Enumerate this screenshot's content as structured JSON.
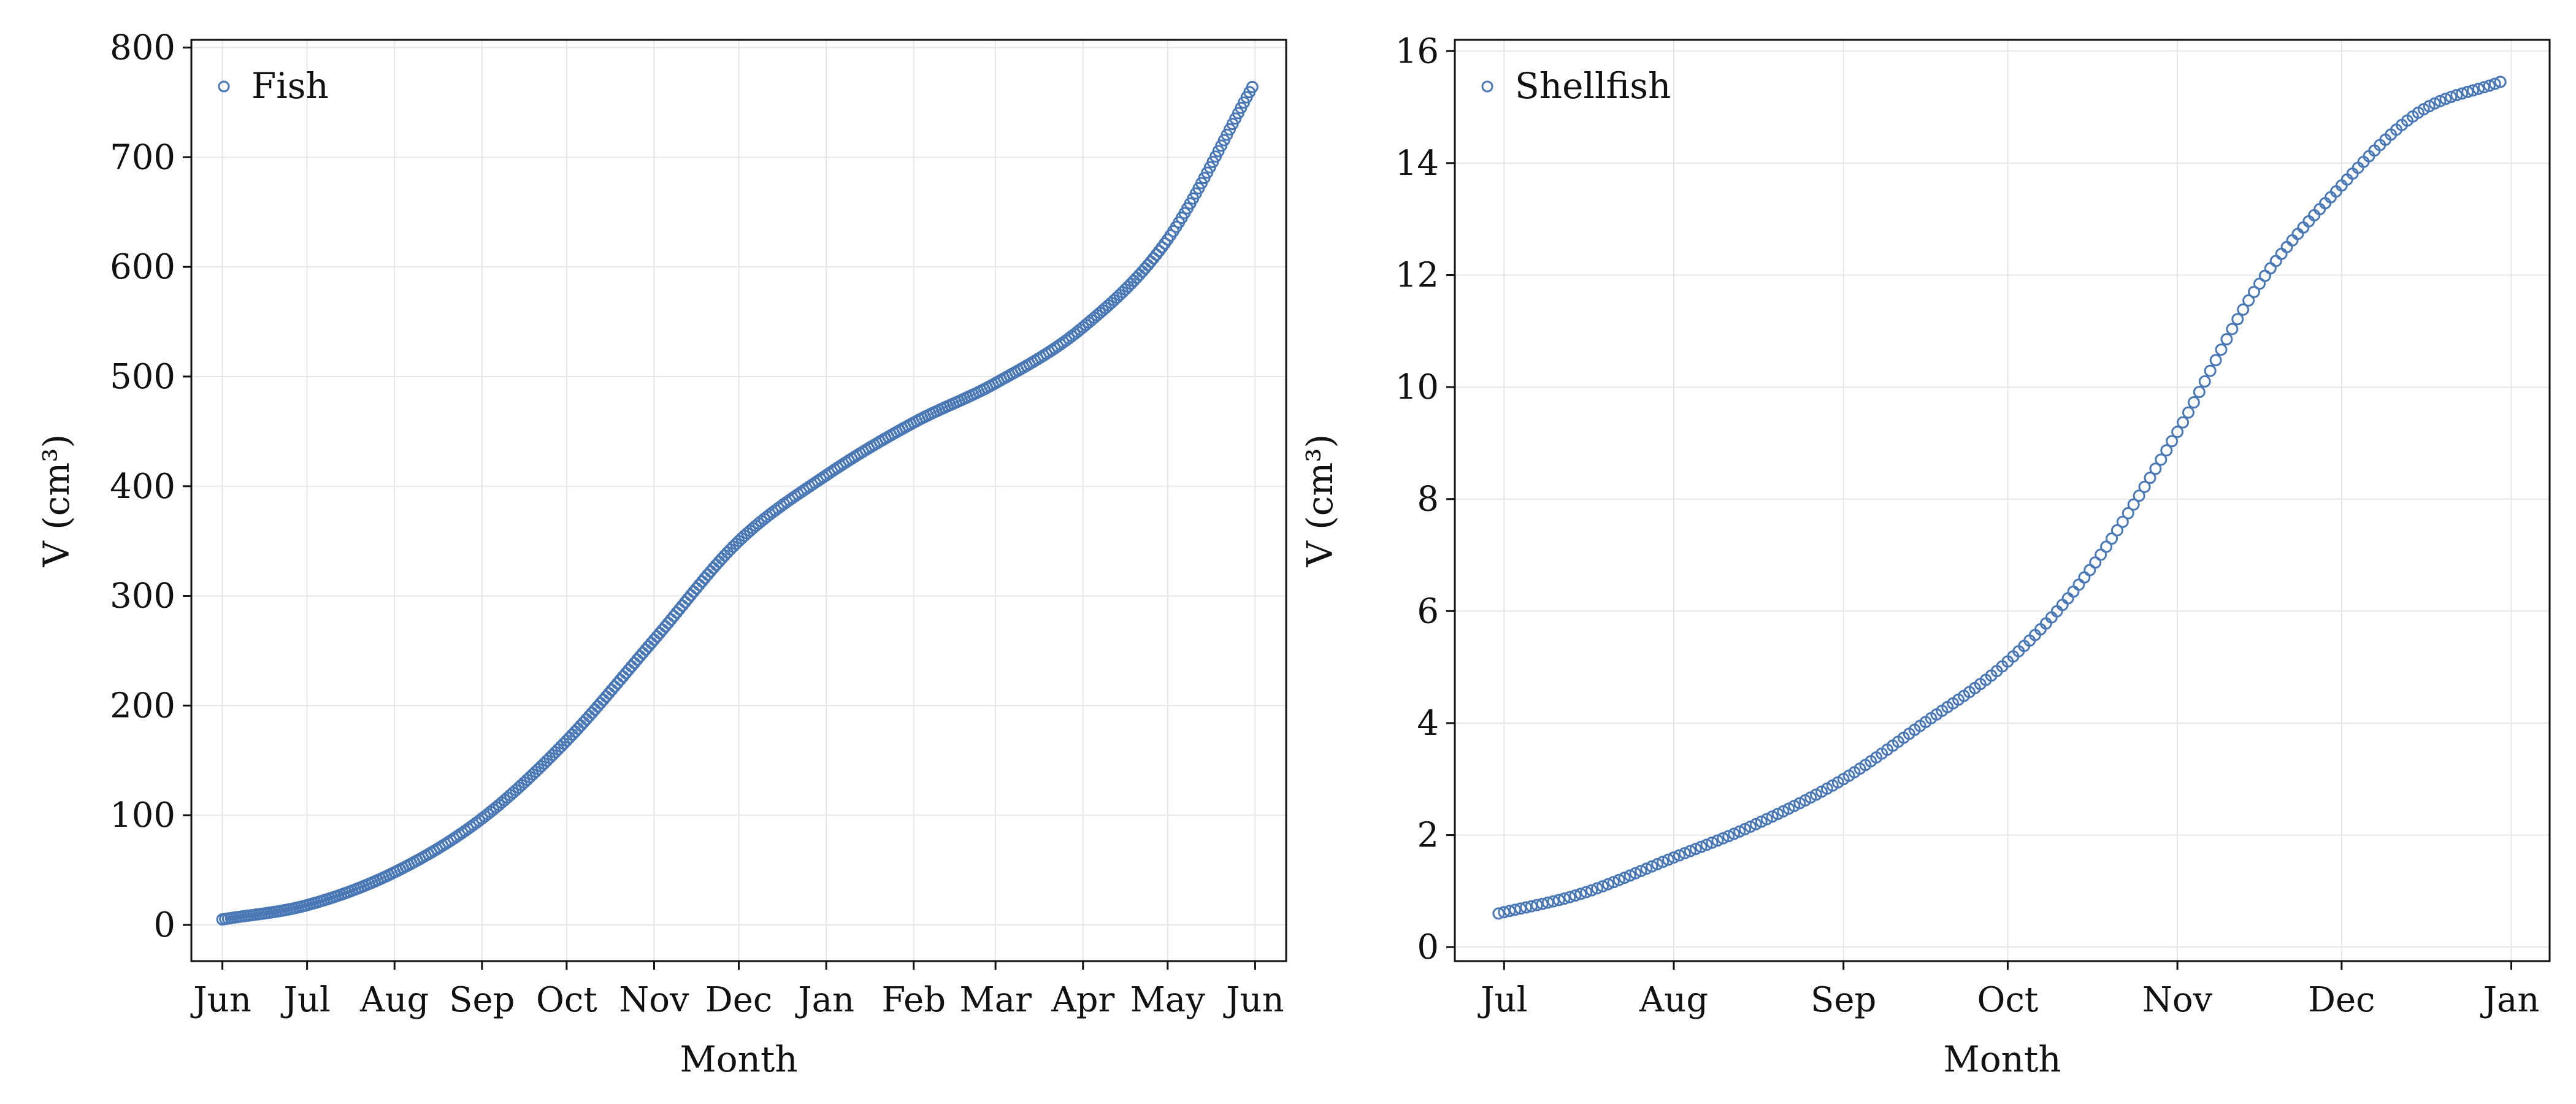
{
  "chart_data": [
    {
      "type": "scatter",
      "legend": {
        "label": "Fish",
        "placement": "top-left"
      },
      "xlabel": "Month",
      "ylabel": "V (cm³)",
      "x_ticks": [
        "Jun",
        "Jul",
        "Aug",
        "Sep",
        "Oct",
        "Nov",
        "Dec",
        "Jan",
        "Feb",
        "Mar",
        "Apr",
        "May",
        "Jun"
      ],
      "x_tick_dates": [
        "2023-06-01",
        "2023-07-01",
        "2023-08-01",
        "2023-09-01",
        "2023-10-01",
        "2023-11-01",
        "2023-12-01",
        "2024-01-01",
        "2024-02-01",
        "2024-03-01",
        "2024-04-01",
        "2024-05-01",
        "2024-06-01"
      ],
      "xlim": [
        "2023-05-21",
        "2024-06-12"
      ],
      "y_ticks": [
        0,
        100,
        200,
        300,
        400,
        500,
        600,
        700,
        800
      ],
      "ylim": [
        -33,
        807
      ],
      "grid": true,
      "marker": {
        "style": "open-circle",
        "color": "#4a78b5"
      },
      "points_every_days": 1,
      "series": [
        {
          "x_start": "2023-06-01",
          "x_end": "2024-05-31",
          "interpolation": "monotone",
          "anchors": [
            {
              "date": "2023-06-01",
              "y": 5
            },
            {
              "date": "2023-07-01",
              "y": 18
            },
            {
              "date": "2023-08-01",
              "y": 48
            },
            {
              "date": "2023-09-01",
              "y": 97
            },
            {
              "date": "2023-10-01",
              "y": 168
            },
            {
              "date": "2023-11-01",
              "y": 260
            },
            {
              "date": "2023-12-01",
              "y": 350
            },
            {
              "date": "2024-01-01",
              "y": 410
            },
            {
              "date": "2024-02-01",
              "y": 458
            },
            {
              "date": "2024-03-01",
              "y": 494
            },
            {
              "date": "2024-04-01",
              "y": 545
            },
            {
              "date": "2024-05-01",
              "y": 625
            },
            {
              "date": "2024-05-31",
              "y": 764
            }
          ]
        }
      ]
    },
    {
      "type": "scatter",
      "legend": {
        "label": "Shellfish",
        "placement": "top-left"
      },
      "xlabel": "Month",
      "ylabel": "V (cm³)",
      "x_ticks": [
        "Jul",
        "Aug",
        "Sep",
        "Oct",
        "Nov",
        "Dec",
        "Jan"
      ],
      "x_tick_dates": [
        "2023-07-01",
        "2023-08-01",
        "2023-09-01",
        "2023-10-01",
        "2023-11-01",
        "2023-12-01",
        "2024-01-01"
      ],
      "xlim": [
        "2023-06-22",
        "2024-01-08"
      ],
      "y_ticks": [
        0,
        2,
        4,
        6,
        8,
        10,
        12,
        14,
        16
      ],
      "ylim": [
        -0.25,
        16.2
      ],
      "grid": true,
      "marker": {
        "style": "open-circle",
        "color": "#4a78b5"
      },
      "points_every_days": 1,
      "series": [
        {
          "x_start": "2023-06-30",
          "x_end": "2023-12-30",
          "interpolation": "monotone",
          "anchors": [
            {
              "date": "2023-06-30",
              "y": 0.6
            },
            {
              "date": "2023-07-15",
              "y": 0.95
            },
            {
              "date": "2023-08-01",
              "y": 1.6
            },
            {
              "date": "2023-08-15",
              "y": 2.15
            },
            {
              "date": "2023-09-01",
              "y": 3.0
            },
            {
              "date": "2023-09-15",
              "y": 3.95
            },
            {
              "date": "2023-10-01",
              "y": 5.1
            },
            {
              "date": "2023-10-15",
              "y": 6.6
            },
            {
              "date": "2023-11-01",
              "y": 9.2
            },
            {
              "date": "2023-11-15",
              "y": 11.7
            },
            {
              "date": "2023-12-01",
              "y": 13.6
            },
            {
              "date": "2023-12-15",
              "y": 14.9
            },
            {
              "date": "2023-12-30",
              "y": 15.45
            }
          ]
        }
      ]
    }
  ]
}
